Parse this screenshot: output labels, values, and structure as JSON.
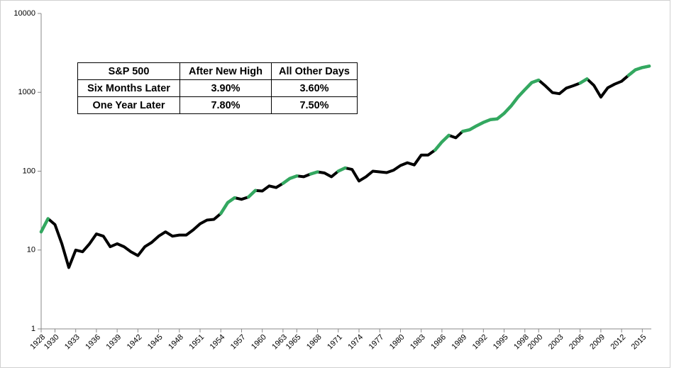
{
  "chart_data": {
    "type": "line",
    "log_y": true,
    "x": [
      1928,
      1929,
      1930,
      1931,
      1932,
      1933,
      1934,
      1935,
      1936,
      1937,
      1938,
      1939,
      1940,
      1941,
      1942,
      1943,
      1944,
      1945,
      1946,
      1947,
      1948,
      1949,
      1950,
      1951,
      1952,
      1953,
      1954,
      1955,
      1956,
      1957,
      1958,
      1959,
      1960,
      1961,
      1962,
      1963,
      1964,
      1965,
      1966,
      1967,
      1968,
      1969,
      1970,
      1971,
      1972,
      1973,
      1974,
      1975,
      1976,
      1977,
      1978,
      1979,
      1980,
      1981,
      1982,
      1983,
      1984,
      1985,
      1986,
      1987,
      1988,
      1989,
      1990,
      1991,
      1992,
      1993,
      1994,
      1995,
      1996,
      1997,
      1998,
      1999,
      2000,
      2001,
      2002,
      2003,
      2004,
      2005,
      2006,
      2007,
      2008,
      2009,
      2010,
      2011,
      2012,
      2013,
      2014,
      2015,
      2016
    ],
    "series": [
      {
        "color": "#000000",
        "values": [
          17,
          25,
          21,
          12,
          6,
          10,
          9.5,
          12,
          16,
          15,
          11,
          12,
          11,
          9.5,
          8.5,
          11,
          12.5,
          15,
          17,
          15,
          15.5,
          15.5,
          18,
          21.5,
          24,
          24.5,
          29,
          40,
          46,
          44,
          47,
          57,
          56,
          65,
          62,
          70,
          81,
          87,
          85,
          92,
          98,
          95,
          85,
          100,
          110,
          105,
          75,
          85,
          100,
          98,
          96,
          103,
          118,
          128,
          120,
          160,
          160,
          185,
          235,
          285,
          265,
          320,
          335,
          375,
          415,
          450,
          460,
          540,
          670,
          870,
          1080,
          1330,
          1430,
          1200,
          990,
          960,
          1130,
          1210,
          1310,
          1480,
          1220,
          870,
          1140,
          1270,
          1380,
          1640,
          1930,
          2060,
          2150
        ]
      },
      {
        "color": "#33a860",
        "values": [
          17,
          25,
          null,
          null,
          null,
          null,
          null,
          null,
          null,
          null,
          null,
          null,
          null,
          null,
          null,
          null,
          null,
          null,
          null,
          null,
          null,
          null,
          null,
          null,
          null,
          null,
          29,
          40,
          46,
          null,
          47,
          57,
          null,
          65,
          null,
          70,
          81,
          87,
          null,
          92,
          98,
          null,
          null,
          100,
          110,
          null,
          null,
          null,
          null,
          null,
          null,
          null,
          118,
          null,
          null,
          160,
          null,
          185,
          235,
          285,
          null,
          320,
          335,
          375,
          415,
          450,
          460,
          540,
          670,
          870,
          1080,
          1330,
          1430,
          null,
          null,
          null,
          null,
          null,
          1310,
          1480,
          null,
          null,
          null,
          null,
          null,
          1640,
          1930,
          2060,
          2150
        ]
      }
    ],
    "xlim": [
      1928,
      2016.3
    ],
    "xticks": [
      1928,
      1930,
      1933,
      1936,
      1939,
      1942,
      1945,
      1948,
      1951,
      1954,
      1957,
      1960,
      1963,
      1965,
      1968,
      1971,
      1974,
      1977,
      1980,
      1983,
      1986,
      1989,
      1992,
      1995,
      1998,
      2000,
      2003,
      2006,
      2009,
      2012,
      2015
    ],
    "ylim": [
      1,
      10000
    ],
    "yticks": [
      1,
      10,
      100,
      1000,
      10000
    ],
    "grid": false
  },
  "table": {
    "rows": [
      [
        "S&P 500",
        "After New High",
        "All Other Days"
      ],
      [
        "Six Months Later",
        "3.90%",
        "3.60%"
      ],
      [
        "One Year Later",
        "7.80%",
        "7.50%"
      ]
    ]
  }
}
